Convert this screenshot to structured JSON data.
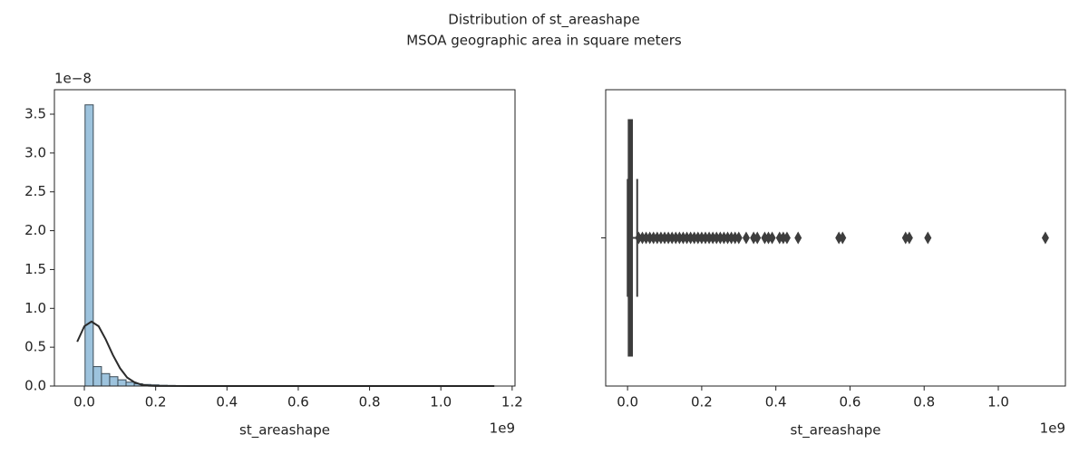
{
  "title": "Distribution of st_areashape",
  "subtitle": "MSOA geographic area in square meters",
  "chart_data": [
    {
      "type": "histogram",
      "xlabel": "st_areashape",
      "x_offset_label": "1e9",
      "y_offset_label": "1e−8",
      "bins": [
        0.002,
        0.025,
        0.048,
        0.071,
        0.094,
        0.117,
        0.14,
        0.163,
        0.186,
        0.209,
        0.232,
        0.255,
        0.278,
        0.301,
        0.324,
        0.347,
        0.37,
        0.393,
        0.416,
        0.439,
        0.462,
        0.485,
        0.508,
        0.531,
        0.554,
        0.577,
        0.6,
        0.623,
        0.646,
        0.669,
        0.692,
        0.715,
        0.738,
        0.761,
        0.784,
        0.807,
        0.83,
        0.853,
        0.876,
        0.899,
        0.922,
        0.945,
        0.968,
        0.991,
        1.014,
        1.037,
        1.06,
        1.083,
        1.106,
        1.129
      ],
      "counts": [
        3.62,
        0.25,
        0.16,
        0.12,
        0.08,
        0.05,
        0.03,
        0.02,
        0.015,
        0.01,
        0.008,
        0.005,
        0.004,
        0.003,
        0.002,
        0.002,
        0.001,
        0.001,
        0.001,
        0.001,
        0.001,
        0,
        0,
        0,
        0.001,
        0,
        0,
        0,
        0,
        0,
        0,
        0,
        0.001,
        0,
        0,
        0.001,
        0,
        0,
        0,
        0,
        0,
        0,
        0,
        0,
        0,
        0,
        0,
        0,
        0.001
      ],
      "color": "#92bcd9",
      "edgecolor": "#3a4a55",
      "kde": {
        "x": [
          -0.02,
          0,
          0.02,
          0.04,
          0.06,
          0.08,
          0.1,
          0.12,
          0.14,
          0.16,
          0.18,
          0.2,
          0.3,
          0.6,
          0.9,
          1.15
        ],
        "values": [
          0.57,
          0.77,
          0.83,
          0.77,
          0.6,
          0.4,
          0.23,
          0.11,
          0.05,
          0.017,
          0.005,
          0.001,
          0,
          0,
          0,
          0
        ],
        "color": "#2b2b2b"
      },
      "xlim": [
        -0.084,
        1.208
      ],
      "xticks": [
        {
          "value": 0,
          "label": "0.0"
        },
        0.2,
        0.4,
        0.6,
        0.8,
        {
          "value": 1,
          "label": "1.0"
        },
        1.2
      ],
      "ylim": [
        0,
        3.815
      ],
      "yticks": [
        {
          "value": 0,
          "label": "0.0"
        },
        0.5,
        {
          "value": 1,
          "label": "1.0"
        },
        1.5,
        {
          "value": 2,
          "label": "2.0"
        },
        2.5,
        {
          "value": 3,
          "label": "3.0"
        },
        3.5
      ]
    },
    {
      "type": "box",
      "xlabel": "st_areashape",
      "x_offset_label": "1e9",
      "categories": [
        null
      ],
      "whisker_low": 0.0003,
      "q1": 0.003,
      "median": 0.005,
      "q3": 0.012,
      "whisker_high": 0.026,
      "outliers": [
        0.03,
        0.04,
        0.05,
        0.06,
        0.07,
        0.08,
        0.09,
        0.1,
        0.11,
        0.12,
        0.13,
        0.14,
        0.15,
        0.16,
        0.17,
        0.18,
        0.19,
        0.2,
        0.21,
        0.22,
        0.23,
        0.24,
        0.25,
        0.26,
        0.27,
        0.28,
        0.29,
        0.3,
        0.32,
        0.34,
        0.35,
        0.37,
        0.38,
        0.39,
        0.41,
        0.42,
        0.43,
        0.46,
        0.57,
        0.58,
        0.75,
        0.76,
        0.81,
        1.127
      ],
      "color": "#3d3d3d",
      "xlim": [
        -0.059,
        1.181
      ],
      "xticks": [
        {
          "value": 0,
          "label": "0.0"
        },
        0.2,
        0.4,
        0.6,
        0.8,
        {
          "value": 1,
          "label": "1.0"
        }
      ]
    }
  ]
}
